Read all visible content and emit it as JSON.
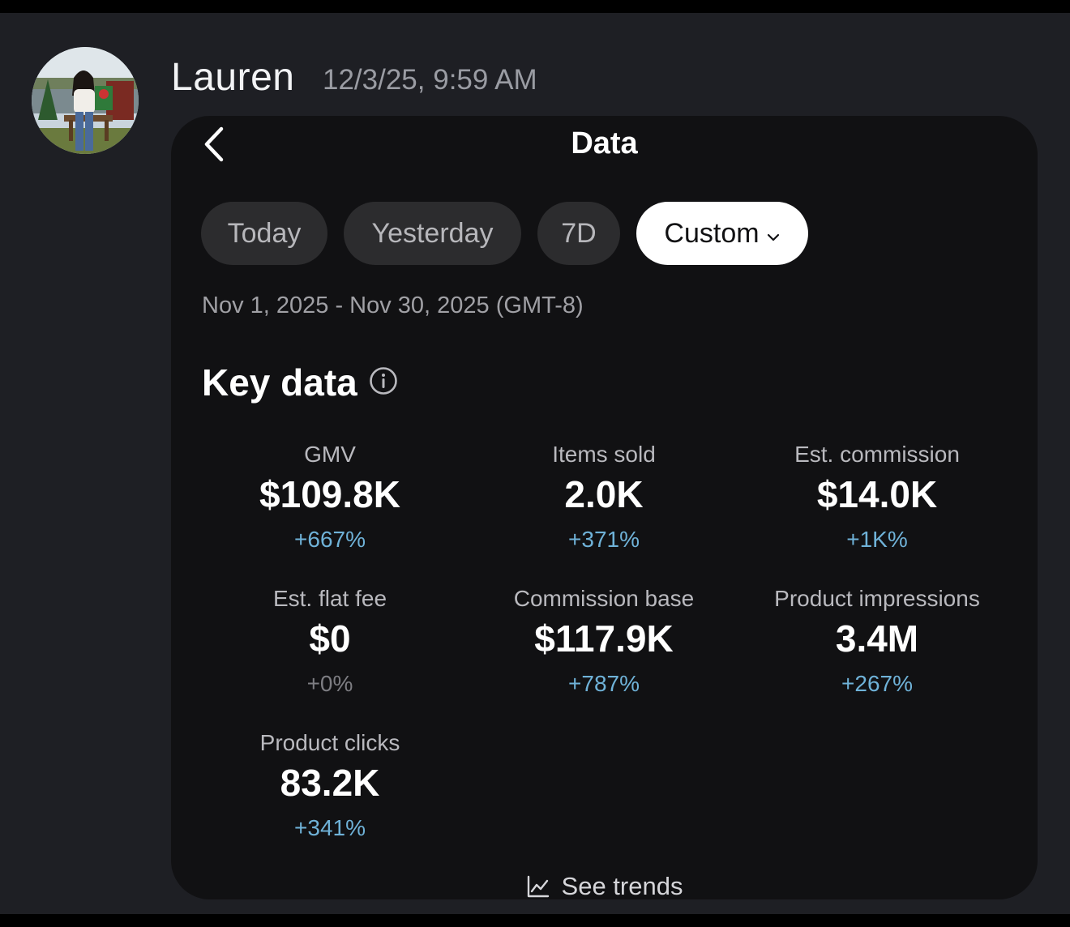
{
  "message": {
    "sender": "Lauren",
    "timestamp": "12/3/25, 9:59 AM"
  },
  "screen": {
    "title": "Data",
    "back_icon": "chevron-left-icon",
    "tabs": [
      {
        "label": "Today",
        "active": false
      },
      {
        "label": "Yesterday",
        "active": false
      },
      {
        "label": "7D",
        "active": false
      },
      {
        "label": "Custom",
        "active": true,
        "icon": "chevron-down-icon"
      }
    ],
    "date_range": "Nov 1, 2025 - Nov 30, 2025 (GMT-8)",
    "section_title": "Key data",
    "info_icon": "info-icon",
    "metrics": [
      {
        "label": "GMV",
        "value": "$109.8K",
        "change": "+667%"
      },
      {
        "label": "Items sold",
        "value": "2.0K",
        "change": "+371%"
      },
      {
        "label": "Est. commission",
        "value": "$14.0K",
        "change": "+1K%"
      },
      {
        "label": "Est. flat fee",
        "value": "$0",
        "change": "+0%"
      },
      {
        "label": "Commission base",
        "value": "$117.9K",
        "change": "+787%"
      },
      {
        "label": "Product impressions",
        "value": "3.4M",
        "change": "+267%"
      },
      {
        "label": "Product clicks",
        "value": "83.2K",
        "change": "+341%"
      }
    ],
    "see_trends": "See trends",
    "trends_icon": "line-chart-icon",
    "colors": {
      "positive_change": "#6fb2d8",
      "neutral_change": "#7d7d82",
      "card_background": "#111113",
      "chat_background": "#1e1f24"
    }
  }
}
